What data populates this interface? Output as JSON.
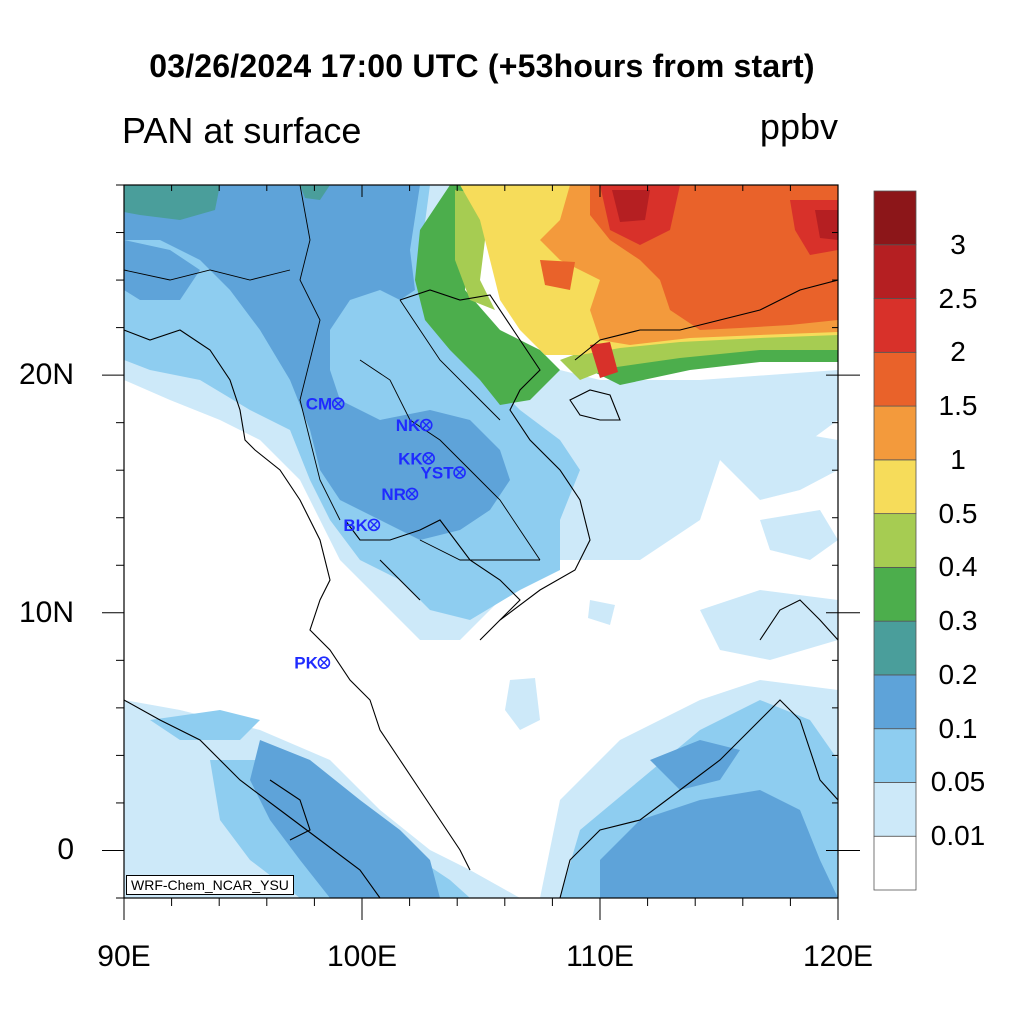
{
  "title": "03/26/2024 17:00 UTC (+53hours from start)",
  "subtitle": "PAN at surface",
  "units": "ppbv",
  "watermark": "WRF-Chem_NCAR_YSU",
  "axes": {
    "x_ticks": [
      {
        "value": 90,
        "label": "90E"
      },
      {
        "value": 100,
        "label": "100E"
      },
      {
        "value": 110,
        "label": "110E"
      },
      {
        "value": 120,
        "label": "120E"
      }
    ],
    "y_ticks": [
      {
        "value": 0,
        "label": "0"
      },
      {
        "value": 10,
        "label": "10N"
      },
      {
        "value": 20,
        "label": "20N"
      }
    ],
    "lon_range": [
      90,
      120
    ],
    "lat_range": [
      -2,
      28
    ]
  },
  "colorbar": {
    "levels": [
      "0.01",
      "0.05",
      "0.1",
      "0.2",
      "0.3",
      "0.4",
      "0.5",
      "1",
      "1.5",
      "2",
      "2.5",
      "3"
    ],
    "colors": [
      "#ffffff",
      "#cde9f9",
      "#8ecdf0",
      "#5ea3d9",
      "#4a9e9b",
      "#4cae4c",
      "#a6cc52",
      "#f6dc5a",
      "#f39a3c",
      "#e9622a",
      "#d8312a",
      "#b51f22",
      "#8c1619"
    ]
  },
  "stations": [
    {
      "label": "CM",
      "lon": 99.0,
      "lat": 18.8
    },
    {
      "label": "NK",
      "lon": 102.7,
      "lat": 17.9
    },
    {
      "label": "KK",
      "lon": 102.8,
      "lat": 16.5
    },
    {
      "label": "YST",
      "lon": 104.1,
      "lat": 15.9
    },
    {
      "label": "NR",
      "lon": 102.1,
      "lat": 15.0
    },
    {
      "label": "BK",
      "lon": 100.5,
      "lat": 13.7
    },
    {
      "label": "PK",
      "lon": 98.4,
      "lat": 7.9
    }
  ]
}
